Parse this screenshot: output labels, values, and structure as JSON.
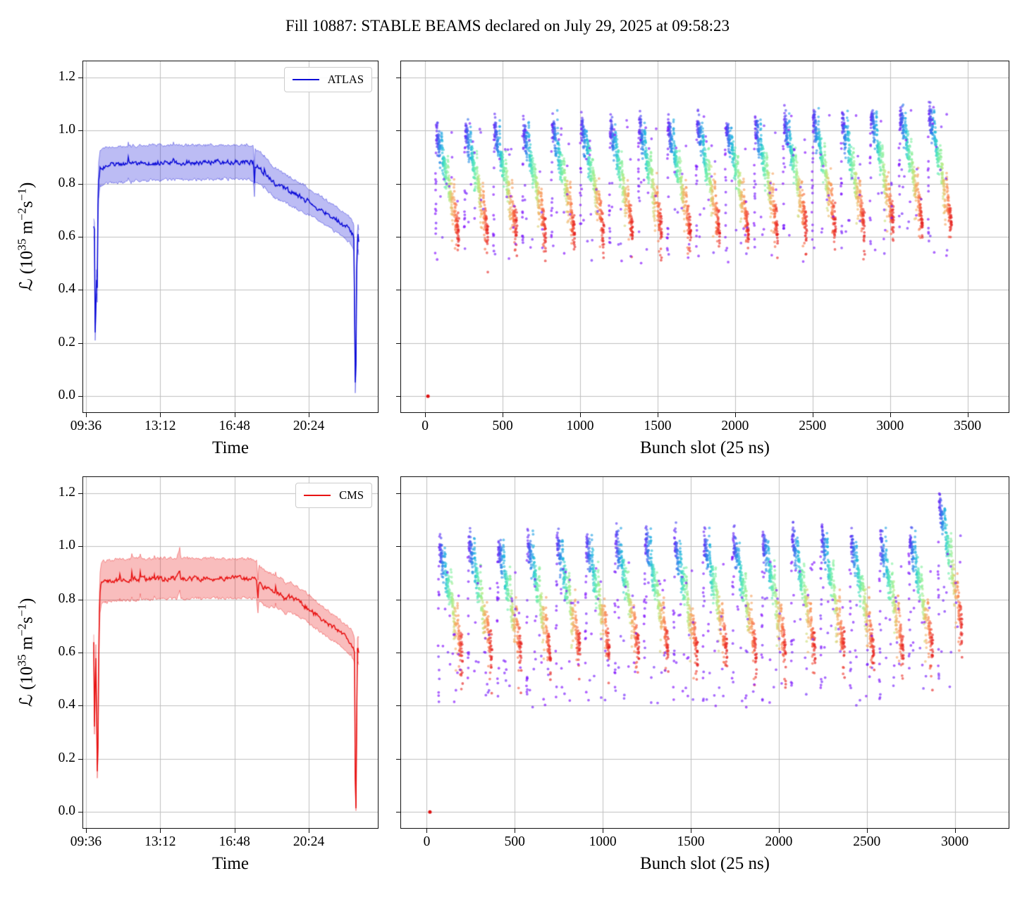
{
  "title": "Fill 10887: STABLE BEAMS declared on July 29, 2025 at 09:58:23",
  "render": {
    "seed": 1887,
    "marker": {
      "radius": 1.9,
      "alpha": 0.62
    },
    "grid_color": "#bfbfbf",
    "rainbow_stops": [
      [
        0.0,
        "#8000ff"
      ],
      [
        0.14,
        "#4456f0"
      ],
      [
        0.28,
        "#18b2e0"
      ],
      [
        0.42,
        "#52e8b8"
      ],
      [
        0.52,
        "#8af09b"
      ],
      [
        0.62,
        "#c3e87d"
      ],
      [
        0.72,
        "#f2b569"
      ],
      [
        0.82,
        "#fb8350"
      ],
      [
        0.92,
        "#f04535"
      ],
      [
        1.0,
        "#e41a1a"
      ]
    ]
  },
  "chart_data": [
    {
      "id": "atlas-luminosity-vs-time",
      "type": "line",
      "legend": "ATLAS",
      "line_color": "#0d0dd8",
      "band_alpha": 0.28,
      "xlabel": "Time",
      "ylabel": "ℒ (10^{35} m^{−2}s^{−1})",
      "xlim": [
        9.43,
        23.78
      ],
      "ylim": [
        -0.063,
        1.263
      ],
      "xticks": [
        {
          "v": 9.6,
          "label": "09:36"
        },
        {
          "v": 13.2,
          "label": "13:12"
        },
        {
          "v": 16.8,
          "label": "16:48"
        },
        {
          "v": 20.4,
          "label": "20:24"
        }
      ],
      "yticks": [
        {
          "v": 0,
          "label": "0.0"
        },
        {
          "v": 0.2,
          "label": "0.2"
        },
        {
          "v": 0.4,
          "label": "0.4"
        },
        {
          "v": 0.6,
          "label": "0.6"
        },
        {
          "v": 0.8,
          "label": "0.8"
        },
        {
          "v": 1,
          "label": "1.0"
        },
        {
          "v": 1.2,
          "label": "1.2"
        }
      ],
      "points": [
        [
          9.97,
          0.635,
          0.035
        ],
        [
          10.03,
          0.61,
          0.035
        ],
        [
          10.05,
          0.12,
          0.03
        ],
        [
          10.07,
          0.55,
          0.05
        ],
        [
          10.09,
          0.085,
          0.03
        ],
        [
          10.11,
          0.5,
          0.05
        ],
        [
          10.13,
          0.09,
          0.03
        ],
        [
          10.16,
          0.62,
          0.06
        ],
        [
          10.2,
          0.8,
          0.07
        ],
        [
          10.28,
          0.858,
          0.07
        ],
        [
          10.6,
          0.868,
          0.068
        ],
        [
          11.2,
          0.873,
          0.068
        ],
        [
          12,
          0.877,
          0.066
        ],
        [
          13,
          0.879,
          0.066
        ],
        [
          14,
          0.88,
          0.065
        ],
        [
          15,
          0.88,
          0.065
        ],
        [
          16,
          0.881,
          0.064
        ],
        [
          17,
          0.881,
          0.063
        ],
        [
          17.5,
          0.882,
          0.063
        ],
        [
          17.72,
          0.875,
          0.062
        ],
        [
          17.76,
          0.79,
          0.05
        ],
        [
          17.8,
          0.868,
          0.062
        ],
        [
          18,
          0.86,
          0.06
        ],
        [
          18.35,
          0.835,
          0.058
        ],
        [
          18.7,
          0.805,
          0.056
        ],
        [
          19,
          0.792,
          0.054
        ],
        [
          19.35,
          0.778,
          0.053
        ],
        [
          19.7,
          0.764,
          0.052
        ],
        [
          20,
          0.75,
          0.051
        ],
        [
          20.4,
          0.732,
          0.05
        ],
        [
          20.9,
          0.707,
          0.049
        ],
        [
          21.4,
          0.681,
          0.048
        ],
        [
          21.9,
          0.655,
          0.047
        ],
        [
          22.3,
          0.632,
          0.047
        ],
        [
          22.55,
          0.607,
          0.046
        ],
        [
          22.6,
          0.592,
          0.046
        ],
        [
          22.64,
          0.05,
          0.03
        ],
        [
          22.68,
          0.04,
          0.03
        ],
        [
          22.73,
          0.57,
          0.05
        ],
        [
          22.79,
          0.585,
          0.05
        ],
        [
          22.84,
          0.575,
          0.05
        ]
      ]
    },
    {
      "id": "atlas-luminosity-per-bunch-slot",
      "type": "scatter",
      "xlabel": "Bunch slot (25 ns)",
      "xlim": [
        -160,
        3770
      ],
      "ylim": [
        -0.063,
        1.263
      ],
      "xticks": [
        {
          "v": 0,
          "label": "0"
        },
        {
          "v": 500,
          "label": "500"
        },
        {
          "v": 1000,
          "label": "1000"
        },
        {
          "v": 1500,
          "label": "1500"
        },
        {
          "v": 2000,
          "label": "2000"
        },
        {
          "v": 2500,
          "label": "2500"
        },
        {
          "v": 3000,
          "label": "3000"
        },
        {
          "v": 3500,
          "label": "3500"
        }
      ],
      "yticks": [
        {
          "v": 0
        },
        {
          "v": 0.2
        },
        {
          "v": 0.4
        },
        {
          "v": 0.6
        },
        {
          "v": 0.8
        },
        {
          "v": 1
        },
        {
          "v": 1.2
        }
      ],
      "trains": {
        "count": 18,
        "first_slot": 66,
        "pitch": 187,
        "bunches": 132,
        "subtrain_len": 33,
        "subtrain_gap": 7
      },
      "profile": {
        "base_start": 0.965,
        "base_end": 1.03,
        "decay": 0.43,
        "noise": 0.028,
        "lead_boost": 0.065,
        "purple_lo": 0.55,
        "purple_hi": 1.02,
        "tail_prob": 0.22,
        "tail_depth": 0.11,
        "spike_train": -1,
        "spike_boost": 0
      },
      "extra_purple": {
        "count": 12,
        "lo": 0.5,
        "hi": 1.06
      },
      "zero_point": {
        "slot": 18,
        "value": 0.0,
        "color": "#dd1111"
      }
    },
    {
      "id": "cms-luminosity-vs-time",
      "type": "line",
      "legend": "CMS",
      "line_color": "#e81212",
      "band_alpha": 0.28,
      "xlabel": "Time",
      "ylabel": "ℒ (10^{35} m^{−2}s^{−1})",
      "xlim": [
        9.43,
        23.78
      ],
      "ylim": [
        -0.063,
        1.263
      ],
      "xticks": [
        {
          "v": 9.6,
          "label": "09:36"
        },
        {
          "v": 13.2,
          "label": "13:12"
        },
        {
          "v": 16.8,
          "label": "16:48"
        },
        {
          "v": 20.4,
          "label": "20:24"
        }
      ],
      "yticks": [
        {
          "v": 0,
          "label": "0.0"
        },
        {
          "v": 0.2,
          "label": "0.2"
        },
        {
          "v": 0.4,
          "label": "0.4"
        },
        {
          "v": 0.6,
          "label": "0.6"
        },
        {
          "v": 0.8,
          "label": "0.8"
        },
        {
          "v": 1,
          "label": "1.0"
        },
        {
          "v": 1.2,
          "label": "1.2"
        }
      ],
      "points": [
        [
          9.97,
          0.645,
          0.03
        ],
        [
          10.0,
          0.63,
          0.03
        ],
        [
          10.02,
          0.05,
          0.02
        ],
        [
          10.04,
          0.62,
          0.05
        ],
        [
          10.06,
          0.04,
          0.02
        ],
        [
          10.08,
          0.6,
          0.05
        ],
        [
          10.1,
          0.03,
          0.02
        ],
        [
          10.12,
          0.58,
          0.05
        ],
        [
          10.14,
          0.02,
          0.02
        ],
        [
          10.17,
          0.55,
          0.05
        ],
        [
          10.19,
          0.03,
          0.02
        ],
        [
          10.22,
          0.64,
          0.06
        ],
        [
          10.27,
          0.82,
          0.075
        ],
        [
          10.35,
          0.865,
          0.078
        ],
        [
          11,
          0.872,
          0.078
        ],
        [
          12,
          0.876,
          0.077
        ],
        [
          13,
          0.878,
          0.076
        ],
        [
          14,
          0.879,
          0.076
        ],
        [
          14.15,
          0.915,
          0.08
        ],
        [
          14.2,
          0.878,
          0.076
        ],
        [
          15,
          0.879,
          0.075
        ],
        [
          16,
          0.88,
          0.074
        ],
        [
          17,
          0.879,
          0.073
        ],
        [
          17.5,
          0.88,
          0.072
        ],
        [
          17.88,
          0.876,
          0.07
        ],
        [
          17.93,
          0.8,
          0.06
        ],
        [
          17.98,
          0.858,
          0.068
        ],
        [
          18.2,
          0.845,
          0.066
        ],
        [
          18.5,
          0.837,
          0.064
        ],
        [
          18.8,
          0.828,
          0.062
        ],
        [
          19.1,
          0.82,
          0.06
        ],
        [
          19.25,
          0.8,
          0.058
        ],
        [
          19.4,
          0.812,
          0.058
        ],
        [
          19.7,
          0.8,
          0.056
        ],
        [
          20,
          0.786,
          0.054
        ],
        [
          20.3,
          0.77,
          0.053
        ],
        [
          20.7,
          0.745,
          0.052
        ],
        [
          21.2,
          0.716,
          0.05
        ],
        [
          21.7,
          0.688,
          0.049
        ],
        [
          22.1,
          0.664,
          0.048
        ],
        [
          22.45,
          0.64,
          0.047
        ],
        [
          22.58,
          0.615,
          0.046
        ],
        [
          22.62,
          0.6,
          0.046
        ],
        [
          22.66,
          0.02,
          0.015
        ],
        [
          22.7,
          0.01,
          0.01
        ],
        [
          22.74,
          0.6,
          0.05
        ],
        [
          22.79,
          0.615,
          0.05
        ],
        [
          22.84,
          0.6,
          0.05
        ]
      ]
    },
    {
      "id": "cms-luminosity-per-bunch-slot",
      "type": "scatter",
      "xlabel": "Bunch slot (25 ns)",
      "xlim": [
        -150,
        3310
      ],
      "ylim": [
        -0.063,
        1.263
      ],
      "xticks": [
        {
          "v": 0,
          "label": "0"
        },
        {
          "v": 500,
          "label": "500"
        },
        {
          "v": 1000,
          "label": "1000"
        },
        {
          "v": 1500,
          "label": "1500"
        },
        {
          "v": 2000,
          "label": "2000"
        },
        {
          "v": 2500,
          "label": "2500"
        },
        {
          "v": 3000,
          "label": "3000"
        }
      ],
      "yticks": [
        {
          "v": 0
        },
        {
          "v": 0.2
        },
        {
          "v": 0.4
        },
        {
          "v": 0.6
        },
        {
          "v": 0.8
        },
        {
          "v": 1
        },
        {
          "v": 1.2
        }
      ],
      "trains": {
        "count": 18,
        "first_slot": 66,
        "pitch": 167,
        "bunches": 120,
        "subtrain_len": 30,
        "subtrain_gap": 6
      },
      "profile": {
        "base_start": 0.975,
        "base_end": 1.005,
        "decay": 0.45,
        "noise": 0.03,
        "lead_boost": 0.07,
        "purple_lo": 0.42,
        "purple_hi": 0.98,
        "tail_prob": 0.25,
        "tail_depth": 0.12,
        "spike_train": 17,
        "spike_boost": 0.13
      },
      "extra_purple": {
        "count": 16,
        "lo": 0.4,
        "hi": 0.95
      },
      "zero_point": {
        "slot": 18,
        "value": 0.0,
        "color": "#dd1111"
      }
    }
  ]
}
